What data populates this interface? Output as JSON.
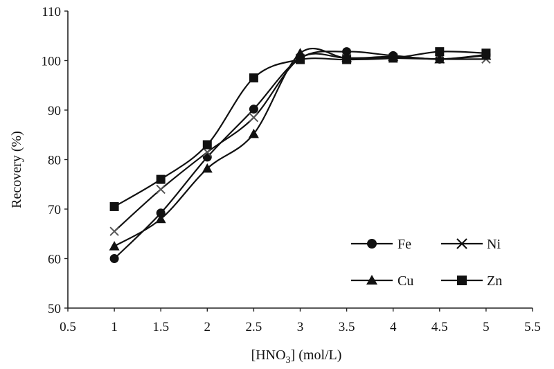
{
  "chart_data": {
    "type": "line",
    "title": "",
    "xlabel_main": "[HNO",
    "xlabel_sub": "3",
    "xlabel_tail": "] (mol/L)",
    "ylabel": "Recovery (%)",
    "xlim": [
      0.5,
      5.5
    ],
    "ylim": [
      50,
      110
    ],
    "x_ticks": [
      0.5,
      1,
      1.5,
      2,
      2.5,
      3,
      3.5,
      4,
      4.5,
      5,
      5.5
    ],
    "x_tick_labels": [
      "0.5",
      "1",
      "1.5",
      "2",
      "2.5",
      "3",
      "3.5",
      "4",
      "4.5",
      "5",
      "5.5"
    ],
    "y_ticks": [
      50,
      60,
      70,
      80,
      90,
      100,
      110
    ],
    "y_tick_labels": [
      "50",
      "60",
      "70",
      "80",
      "90",
      "100",
      "110"
    ],
    "grid": false,
    "legend_position": "bottom-right",
    "x": [
      1,
      1.5,
      2,
      2.5,
      3,
      3.5,
      4,
      4.5,
      5
    ],
    "series": [
      {
        "name": "Fe",
        "marker": "circle",
        "values": [
          60,
          69.2,
          80.5,
          90.2,
          100.5,
          101.8,
          101,
          100.3,
          101.2
        ]
      },
      {
        "name": "Ni",
        "marker": "x",
        "values": [
          65.5,
          74,
          81.5,
          88.5,
          100.5,
          100.5,
          100.5,
          100.3,
          100.3
        ]
      },
      {
        "name": "Cu",
        "marker": "triangle",
        "values": [
          62.5,
          68,
          78.2,
          85.2,
          101.5,
          100.5,
          100.8,
          100.3,
          101
        ]
      },
      {
        "name": "Zn",
        "marker": "square",
        "values": [
          70.5,
          76,
          83,
          96.5,
          100.2,
          100.2,
          100.5,
          101.8,
          101.5
        ]
      }
    ]
  }
}
